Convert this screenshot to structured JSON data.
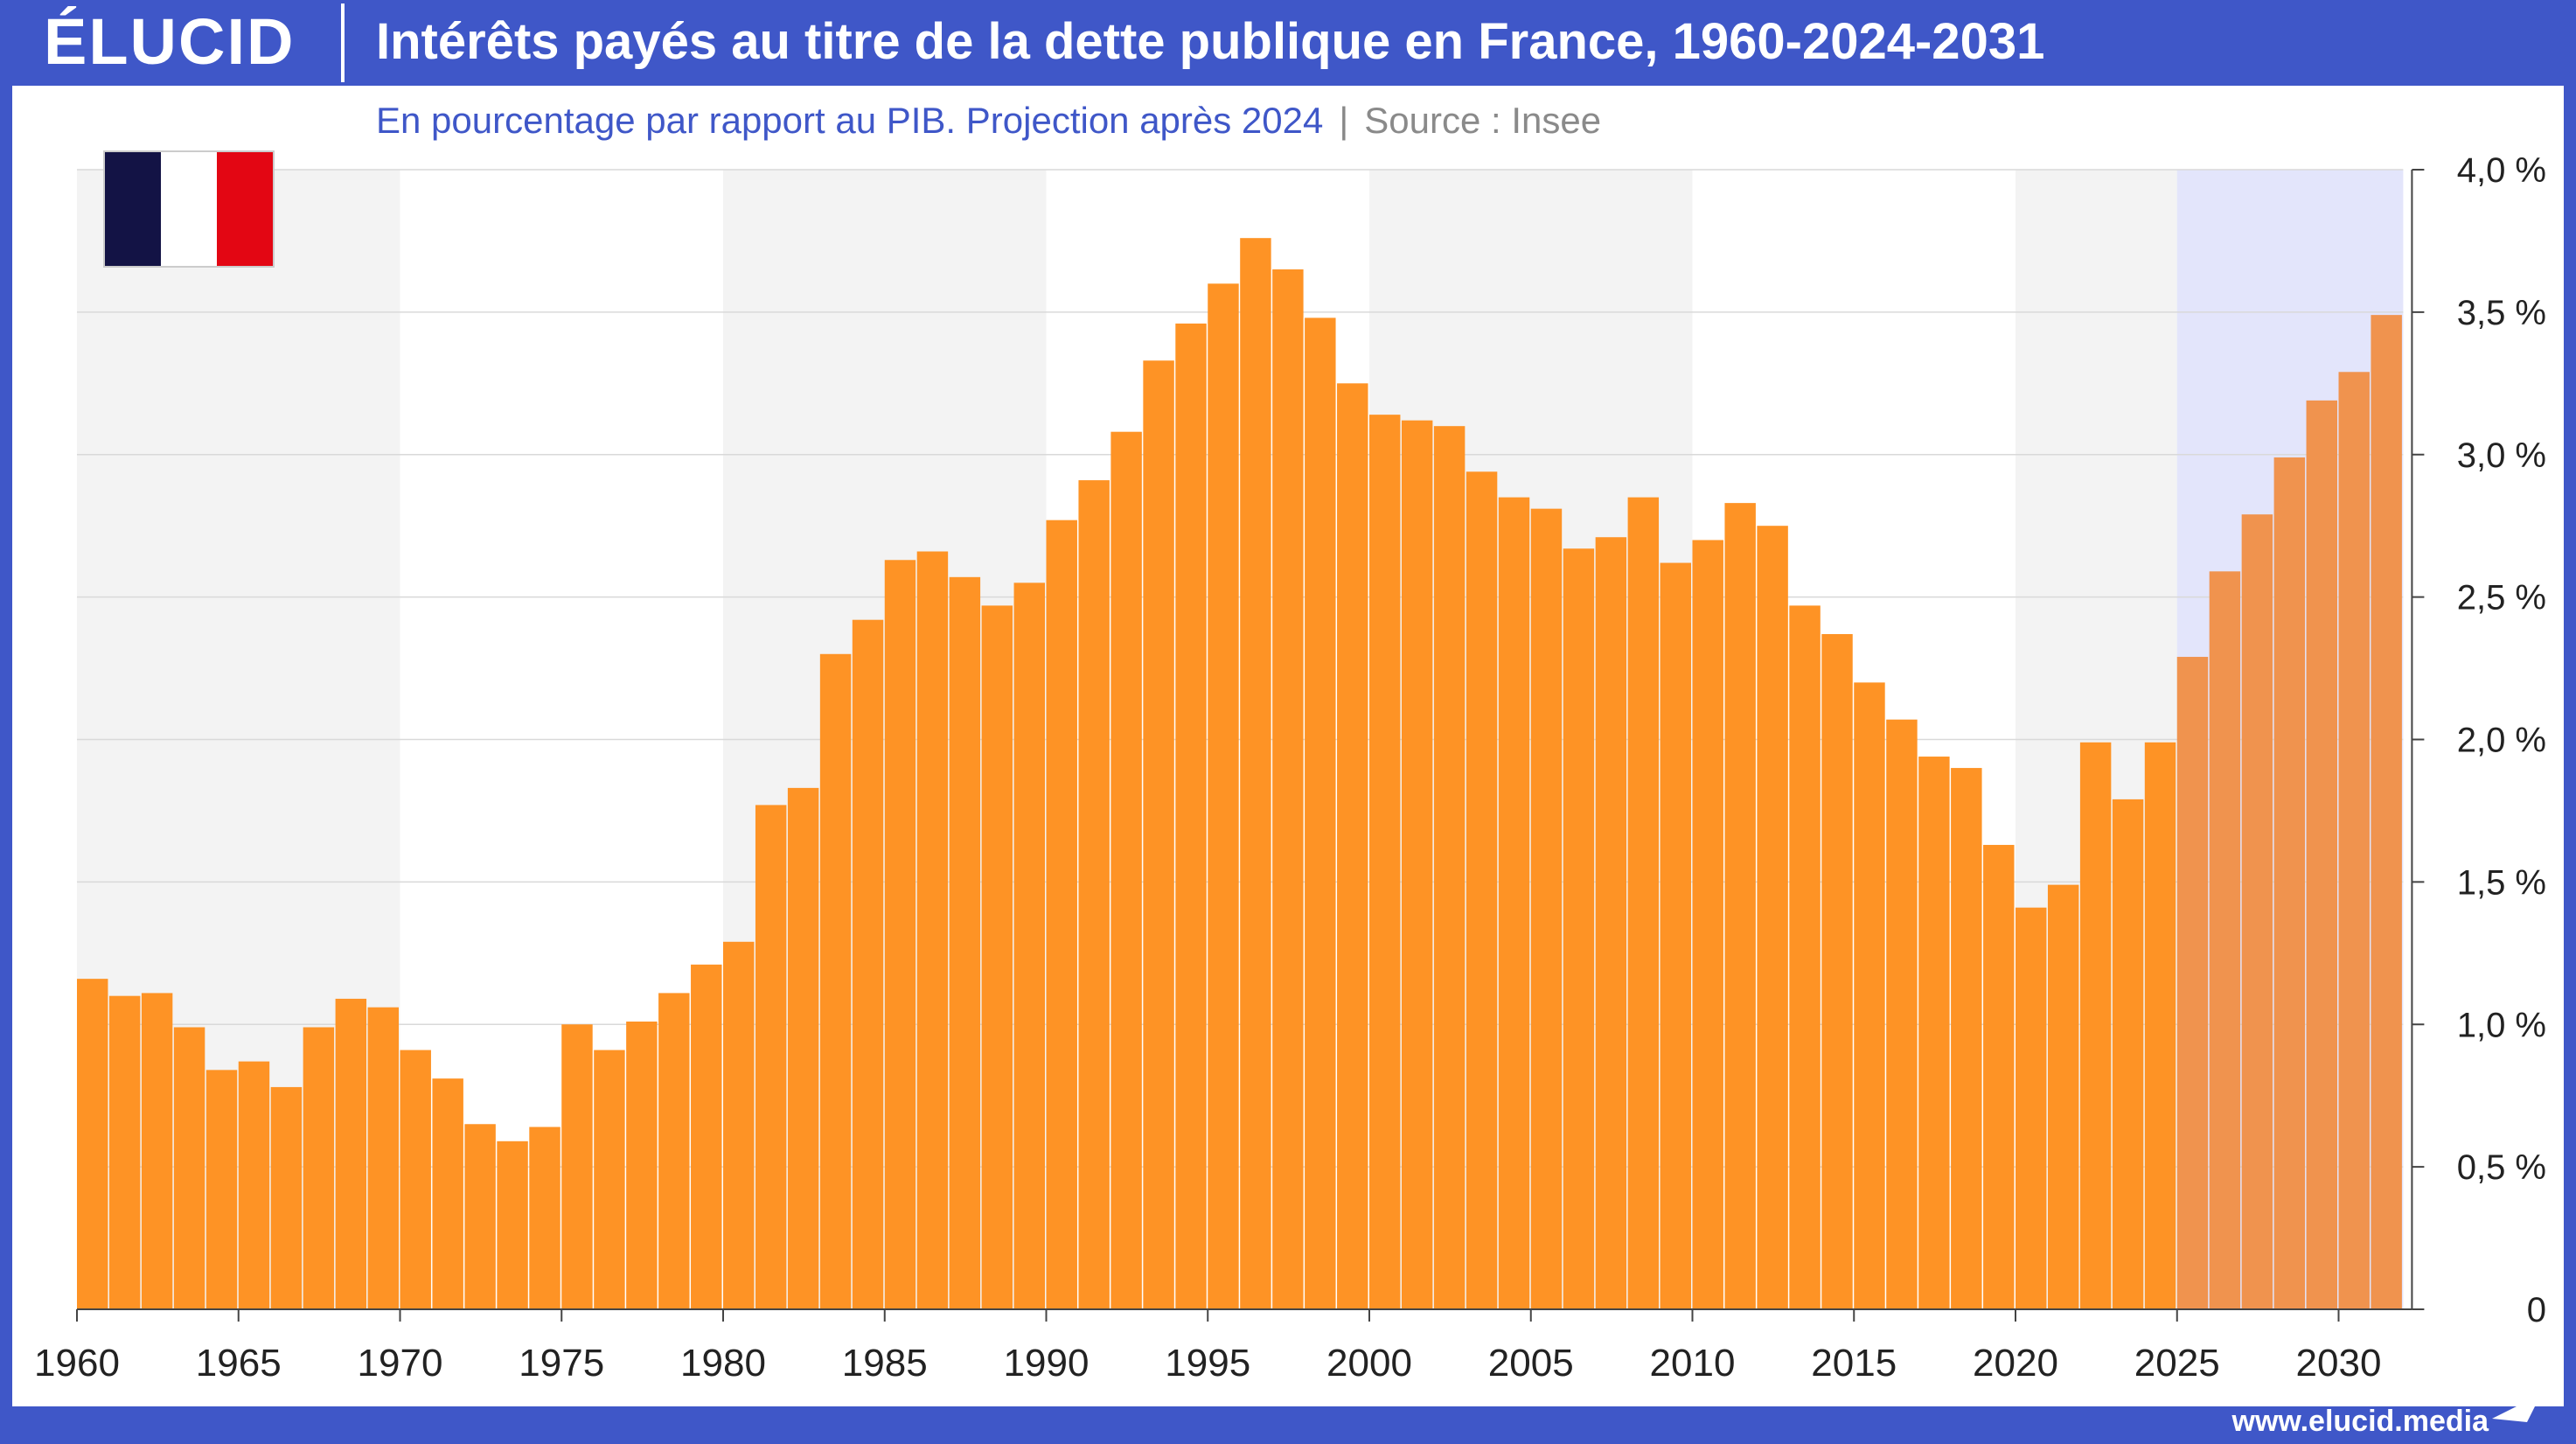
{
  "brand": {
    "logo": "ÉLUCID",
    "url": "www.elucid.media"
  },
  "colors": {
    "bar": "#fe9325",
    "bar_projection": "#f0934e",
    "projection_bg": "#e3e5fb",
    "band": "#f3f3f3",
    "frame": "#3f57c8"
  },
  "flag": {
    "blue": "#131345",
    "white": "#ffffff",
    "red": "#e30613"
  },
  "chart_data": {
    "type": "bar",
    "title": "Intérêts payés au titre de la dette publique en France, 1960-2024-2031",
    "subtitle": "En pourcentage par rapport au PIB. Projection après 2024",
    "source": "Source : Insee",
    "categories": [
      1960,
      1961,
      1962,
      1963,
      1964,
      1965,
      1966,
      1967,
      1968,
      1969,
      1970,
      1971,
      1972,
      1973,
      1974,
      1975,
      1976,
      1977,
      1978,
      1979,
      1980,
      1981,
      1982,
      1983,
      1984,
      1985,
      1986,
      1987,
      1988,
      1989,
      1990,
      1991,
      1992,
      1993,
      1994,
      1995,
      1996,
      1997,
      1998,
      1999,
      2000,
      2001,
      2002,
      2003,
      2004,
      2005,
      2006,
      2007,
      2008,
      2009,
      2010,
      2011,
      2012,
      2013,
      2014,
      2015,
      2016,
      2017,
      2018,
      2019,
      2020,
      2021,
      2022,
      2023,
      2024,
      2025,
      2026,
      2027,
      2028,
      2029,
      2030,
      2031
    ],
    "values": [
      1.16,
      1.1,
      1.11,
      0.99,
      0.84,
      0.87,
      0.78,
      0.99,
      1.09,
      1.06,
      0.91,
      0.81,
      0.65,
      0.59,
      0.64,
      1.0,
      0.91,
      1.01,
      1.11,
      1.21,
      1.29,
      1.77,
      1.83,
      2.3,
      2.42,
      2.63,
      2.66,
      2.57,
      2.47,
      2.55,
      2.77,
      2.91,
      3.08,
      3.33,
      3.46,
      3.6,
      3.76,
      3.65,
      3.48,
      3.25,
      3.14,
      3.12,
      3.1,
      2.94,
      2.85,
      2.81,
      2.67,
      2.71,
      2.85,
      2.62,
      2.7,
      2.83,
      2.75,
      2.47,
      2.37,
      2.2,
      2.07,
      1.94,
      1.9,
      1.63,
      1.41,
      1.49,
      1.99,
      1.79,
      1.99,
      2.29,
      2.59,
      2.79,
      2.99,
      3.19,
      3.29,
      3.49
    ],
    "projection_start": 2025,
    "ylim": [
      0,
      4.0
    ],
    "y_ticks": [
      "0",
      "0,5 %",
      "1,0 %",
      "1,5 %",
      "2,0 %",
      "2,5 %",
      "3,0 %",
      "3,5 %",
      "4,0 %"
    ],
    "x_ticks": [
      "1960",
      "1965",
      "1970",
      "1975",
      "1980",
      "1985",
      "1990",
      "1995",
      "2000",
      "2005",
      "2010",
      "2015",
      "2020",
      "2025",
      "2030"
    ],
    "grid": true
  }
}
